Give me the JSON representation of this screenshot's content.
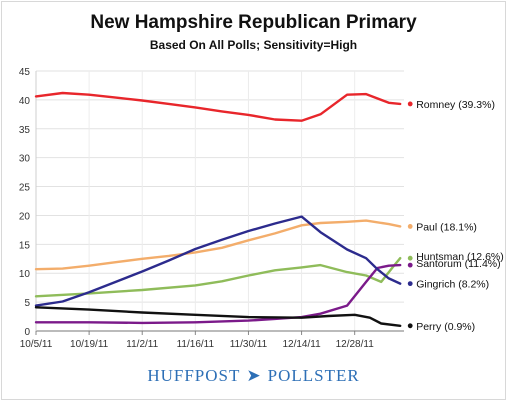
{
  "chart_data": {
    "type": "line",
    "title": "New Hampshire Republican Primary",
    "subtitle": "Based On All Polls; Sensitivity=High",
    "xlabel": "",
    "ylabel": "",
    "ylim": [
      0,
      45
    ],
    "yticks": [
      0,
      5,
      10,
      15,
      20,
      25,
      30,
      35,
      40,
      45
    ],
    "xticks": [
      "10/5/11",
      "10/19/11",
      "11/2/11",
      "11/16/11",
      "11/30/11",
      "12/14/11",
      "12/28/11"
    ],
    "x_range": [
      "2011-10-05",
      "2012-01-10"
    ],
    "grid": true,
    "legend": "right-end labels",
    "series": [
      {
        "name": "Romney",
        "label": "Romney (39.3%)",
        "color": "#e8262b",
        "points": [
          [
            "2011-10-05",
            40.6
          ],
          [
            "2011-10-12",
            41.2
          ],
          [
            "2011-10-19",
            40.9
          ],
          [
            "2011-10-26",
            40.4
          ],
          [
            "2011-11-02",
            39.9
          ],
          [
            "2011-11-09",
            39.3
          ],
          [
            "2011-11-16",
            38.7
          ],
          [
            "2011-11-23",
            38.0
          ],
          [
            "2011-11-30",
            37.4
          ],
          [
            "2011-12-07",
            36.6
          ],
          [
            "2011-12-14",
            36.4
          ],
          [
            "2011-12-19",
            37.5
          ],
          [
            "2011-12-26",
            40.9
          ],
          [
            "2011-12-31",
            41.0
          ],
          [
            "2012-01-06",
            39.5
          ],
          [
            "2012-01-09",
            39.3
          ]
        ]
      },
      {
        "name": "Paul",
        "label": "Paul (18.1%)",
        "color": "#f3ad6b",
        "points": [
          [
            "2011-10-05",
            10.7
          ],
          [
            "2011-10-12",
            10.8
          ],
          [
            "2011-10-19",
            11.3
          ],
          [
            "2011-10-26",
            11.9
          ],
          [
            "2011-11-02",
            12.5
          ],
          [
            "2011-11-09",
            13.0
          ],
          [
            "2011-11-16",
            13.6
          ],
          [
            "2011-11-23",
            14.4
          ],
          [
            "2011-11-30",
            15.7
          ],
          [
            "2011-12-07",
            16.9
          ],
          [
            "2011-12-14",
            18.3
          ],
          [
            "2011-12-19",
            18.7
          ],
          [
            "2011-12-26",
            18.9
          ],
          [
            "2011-12-31",
            19.1
          ],
          [
            "2012-01-06",
            18.5
          ],
          [
            "2012-01-09",
            18.1
          ]
        ]
      },
      {
        "name": "Huntsman",
        "label": "Huntsman (12.6%)",
        "color": "#8fbc5a",
        "points": [
          [
            "2011-10-05",
            6.0
          ],
          [
            "2011-10-19",
            6.5
          ],
          [
            "2011-11-02",
            7.1
          ],
          [
            "2011-11-16",
            7.9
          ],
          [
            "2011-11-23",
            8.6
          ],
          [
            "2011-11-30",
            9.6
          ],
          [
            "2011-12-07",
            10.5
          ],
          [
            "2011-12-14",
            11.0
          ],
          [
            "2011-12-19",
            11.4
          ],
          [
            "2011-12-26",
            10.2
          ],
          [
            "2011-12-31",
            9.6
          ],
          [
            "2012-01-04",
            8.5
          ],
          [
            "2012-01-07",
            11.0
          ],
          [
            "2012-01-09",
            12.6
          ]
        ]
      },
      {
        "name": "Santorum",
        "label": "Santorum (11.4%)",
        "color": "#7b1a8a",
        "points": [
          [
            "2011-10-05",
            1.5
          ],
          [
            "2011-10-19",
            1.5
          ],
          [
            "2011-11-02",
            1.4
          ],
          [
            "2011-11-16",
            1.5
          ],
          [
            "2011-11-30",
            1.8
          ],
          [
            "2011-12-07",
            2.1
          ],
          [
            "2011-12-14",
            2.4
          ],
          [
            "2011-12-19",
            3.0
          ],
          [
            "2011-12-26",
            4.4
          ],
          [
            "2011-12-31",
            8.5
          ],
          [
            "2012-01-03",
            10.9
          ],
          [
            "2012-01-06",
            11.3
          ],
          [
            "2012-01-09",
            11.4
          ]
        ]
      },
      {
        "name": "Gingrich",
        "label": "Gingrich (8.2%)",
        "color": "#2c2b8d",
        "points": [
          [
            "2011-10-05",
            4.4
          ],
          [
            "2011-10-12",
            5.1
          ],
          [
            "2011-10-19",
            6.7
          ],
          [
            "2011-10-26",
            8.5
          ],
          [
            "2011-11-02",
            10.3
          ],
          [
            "2011-11-09",
            12.2
          ],
          [
            "2011-11-16",
            14.2
          ],
          [
            "2011-11-23",
            15.8
          ],
          [
            "2011-11-30",
            17.3
          ],
          [
            "2011-12-07",
            18.6
          ],
          [
            "2011-12-14",
            19.8
          ],
          [
            "2011-12-19",
            17.1
          ],
          [
            "2011-12-26",
            14.1
          ],
          [
            "2011-12-31",
            12.6
          ],
          [
            "2012-01-03",
            10.7
          ],
          [
            "2012-01-06",
            9.1
          ],
          [
            "2012-01-09",
            8.2
          ]
        ]
      },
      {
        "name": "Perry",
        "label": "Perry (0.9%)",
        "color": "#111111",
        "points": [
          [
            "2011-10-05",
            4.1
          ],
          [
            "2011-10-19",
            3.7
          ],
          [
            "2011-11-02",
            3.2
          ],
          [
            "2011-11-16",
            2.8
          ],
          [
            "2011-11-30",
            2.4
          ],
          [
            "2011-12-14",
            2.3
          ],
          [
            "2011-12-21",
            2.6
          ],
          [
            "2011-12-28",
            2.8
          ],
          [
            "2012-01-01",
            2.3
          ],
          [
            "2012-01-04",
            1.3
          ],
          [
            "2012-01-09",
            0.9
          ]
        ]
      }
    ]
  },
  "footer": {
    "brand_left": "HUFFPOST",
    "brand_right": "POLLSTER",
    "arrow_icon": "paper-plane-icon"
  }
}
